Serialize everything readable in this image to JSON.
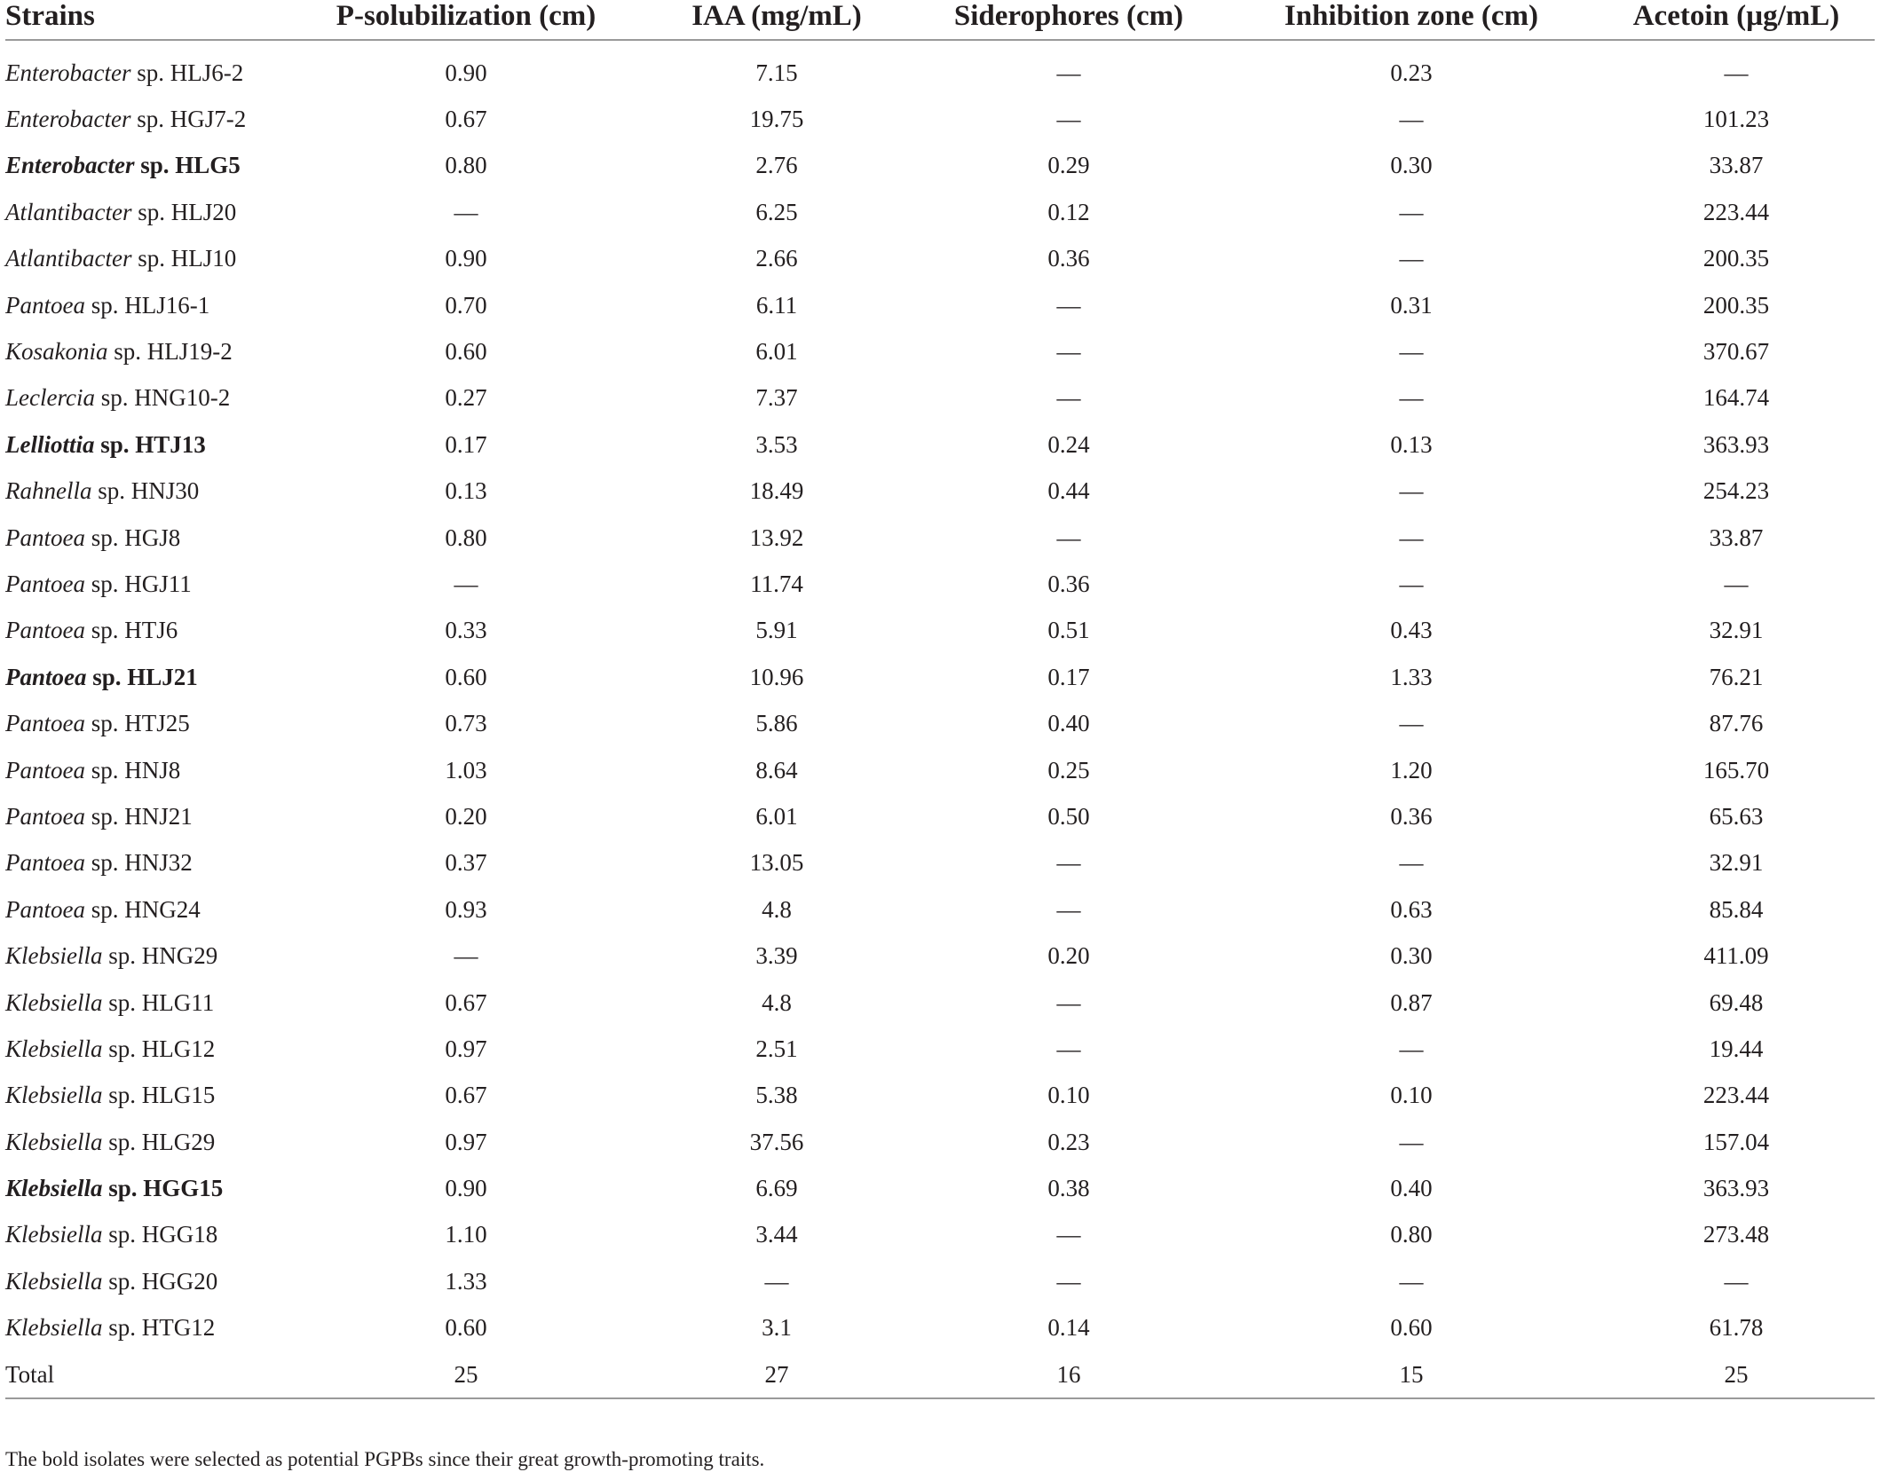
{
  "table": {
    "headers": [
      "Strains",
      "P-solubilization (cm)",
      "IAA (mg/mL)",
      "Siderophores (cm)",
      "Inhibition zone (cm)",
      "Acetoin (µg/mL)"
    ],
    "rows": [
      {
        "genus": "Enterobacter",
        "strain": " sp. HLJ6-2",
        "bold": false,
        "values": [
          "0.90",
          "7.15",
          "—",
          "0.23",
          "—"
        ]
      },
      {
        "genus": "Enterobacter",
        "strain": " sp. HGJ7-2",
        "bold": false,
        "values": [
          "0.67",
          "19.75",
          "—",
          "—",
          "101.23"
        ]
      },
      {
        "genus": "Enterobacter",
        "strain": " sp. HLG5",
        "bold": true,
        "values": [
          "0.80",
          "2.76",
          "0.29",
          "0.30",
          "33.87"
        ]
      },
      {
        "genus": "Atlantibacter",
        "strain": " sp. HLJ20",
        "bold": false,
        "values": [
          "—",
          "6.25",
          "0.12",
          "—",
          "223.44"
        ]
      },
      {
        "genus": "Atlantibacter",
        "strain": " sp. HLJ10",
        "bold": false,
        "values": [
          "0.90",
          "2.66",
          "0.36",
          "—",
          "200.35"
        ]
      },
      {
        "genus": "Pantoea",
        "strain": " sp. HLJ16-1",
        "bold": false,
        "values": [
          "0.70",
          "6.11",
          "—",
          "0.31",
          "200.35"
        ]
      },
      {
        "genus": "Kosakonia",
        "strain": " sp. HLJ19-2",
        "bold": false,
        "values": [
          "0.60",
          "6.01",
          "—",
          "—",
          "370.67"
        ]
      },
      {
        "genus": "Leclercia",
        "strain": " sp. HNG10-2",
        "bold": false,
        "values": [
          "0.27",
          "7.37",
          "—",
          "—",
          "164.74"
        ]
      },
      {
        "genus": "Lelliottia",
        "strain": " sp. HTJ13",
        "bold": true,
        "values": [
          "0.17",
          "3.53",
          "0.24",
          "0.13",
          "363.93"
        ]
      },
      {
        "genus": "Rahnella",
        "strain": " sp. HNJ30",
        "bold": false,
        "values": [
          "0.13",
          "18.49",
          "0.44",
          "—",
          "254.23"
        ]
      },
      {
        "genus": "Pantoea",
        "strain": " sp. HGJ8",
        "bold": false,
        "values": [
          "0.80",
          "13.92",
          "—",
          "—",
          "33.87"
        ]
      },
      {
        "genus": "Pantoea",
        "strain": " sp. HGJ11",
        "bold": false,
        "values": [
          "—",
          "11.74",
          "0.36",
          "—",
          "—"
        ]
      },
      {
        "genus": "Pantoea",
        "strain": " sp. HTJ6",
        "bold": false,
        "values": [
          "0.33",
          "5.91",
          "0.51",
          "0.43",
          "32.91"
        ]
      },
      {
        "genus": "Pantoea",
        "strain": " sp. HLJ21",
        "bold": true,
        "values": [
          "0.60",
          "10.96",
          "0.17",
          "1.33",
          "76.21"
        ]
      },
      {
        "genus": "Pantoea",
        "strain": " sp. HTJ25",
        "bold": false,
        "values": [
          "0.73",
          "5.86",
          "0.40",
          "—",
          "87.76"
        ]
      },
      {
        "genus": "Pantoea",
        "strain": " sp. HNJ8",
        "bold": false,
        "values": [
          "1.03",
          "8.64",
          "0.25",
          "1.20",
          "165.70"
        ]
      },
      {
        "genus": "Pantoea",
        "strain": " sp. HNJ21",
        "bold": false,
        "values": [
          "0.20",
          "6.01",
          "0.50",
          "0.36",
          "65.63"
        ]
      },
      {
        "genus": "Pantoea",
        "strain": " sp. HNJ32",
        "bold": false,
        "values": [
          "0.37",
          "13.05",
          "—",
          "—",
          "32.91"
        ]
      },
      {
        "genus": "Pantoea",
        "strain": " sp. HNG24",
        "bold": false,
        "values": [
          "0.93",
          "4.8",
          "—",
          "0.63",
          "85.84"
        ]
      },
      {
        "genus": "Klebsiella",
        "strain": " sp. HNG29",
        "bold": false,
        "values": [
          "—",
          "3.39",
          "0.20",
          "0.30",
          "411.09"
        ]
      },
      {
        "genus": "Klebsiella",
        "strain": " sp. HLG11",
        "bold": false,
        "values": [
          "0.67",
          "4.8",
          "—",
          "0.87",
          "69.48"
        ]
      },
      {
        "genus": "Klebsiella",
        "strain": " sp. HLG12",
        "bold": false,
        "values": [
          "0.97",
          "2.51",
          "—",
          "—",
          "19.44"
        ]
      },
      {
        "genus": "Klebsiella",
        "strain": " sp. HLG15",
        "bold": false,
        "values": [
          "0.67",
          "5.38",
          "0.10",
          "0.10",
          "223.44"
        ]
      },
      {
        "genus": "Klebsiella",
        "strain": " sp. HLG29",
        "bold": false,
        "values": [
          "0.97",
          "37.56",
          "0.23",
          "—",
          "157.04"
        ]
      },
      {
        "genus": "Klebsiella",
        "strain": " sp. HGG15",
        "bold": true,
        "values": [
          "0.90",
          "6.69",
          "0.38",
          "0.40",
          "363.93"
        ]
      },
      {
        "genus": "Klebsiella",
        "strain": " sp. HGG18",
        "bold": false,
        "values": [
          "1.10",
          "3.44",
          "—",
          "0.80",
          "273.48"
        ]
      },
      {
        "genus": "Klebsiella",
        "strain": " sp. HGG20",
        "bold": false,
        "values": [
          "1.33",
          "—",
          "—",
          "—",
          "—"
        ]
      },
      {
        "genus": "Klebsiella",
        "strain": " sp. HTG12",
        "bold": false,
        "values": [
          "0.60",
          "3.1",
          "0.14",
          "0.60",
          "61.78"
        ]
      }
    ],
    "total": {
      "label": "Total",
      "values": [
        "25",
        "27",
        "16",
        "15",
        "25"
      ]
    }
  },
  "footnote": "The bold isolates were selected as potential PGPBs since their great growth-promoting traits."
}
